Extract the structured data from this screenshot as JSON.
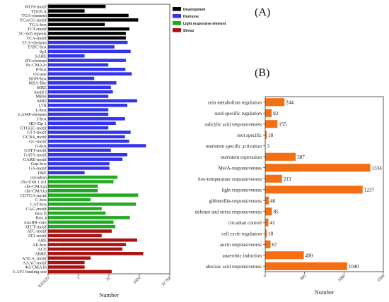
{
  "panels": {
    "a_label": "(A)",
    "b_label": "(B)"
  },
  "colors": {
    "development": "#000000",
    "hormone": "#3333ee",
    "light": "#22aa22",
    "stress": "#aa1111",
    "bars_b": "#f46e14"
  },
  "chart_data": [
    {
      "type": "bar",
      "orientation": "horizontal",
      "panel": "(A)",
      "xlabel": "Number",
      "xscale": "log2",
      "xlim": [
        0.03125,
        32768
      ],
      "xticks": [
        "0.03125",
        "1",
        "32",
        "1024",
        "32 768"
      ],
      "xtick_values": [
        0.03125,
        1,
        32,
        1024,
        32768
      ],
      "legend": {
        "placement": "top-right",
        "entries": [
          {
            "name": "Development",
            "color": "#000000"
          },
          {
            "name": "Hormone",
            "color": "#3333ee"
          },
          {
            "name": "Light responsive element",
            "color": "#22aa22"
          },
          {
            "name": "Stress",
            "color": "#aa1111"
          }
        ]
      },
      "bars": [
        {
          "label": "WUN-motif",
          "value": 22,
          "group": "development"
        },
        {
          "label": "TGGCA",
          "value": 2,
          "group": "development"
        },
        {
          "label": "TGA-element",
          "value": 300,
          "group": "development"
        },
        {
          "label": "TGACG-motif",
          "value": 900,
          "group": "development"
        },
        {
          "label": "TGA-box",
          "value": 20,
          "group": "development"
        },
        {
          "label": "TCT-motif",
          "value": 330,
          "group": "development"
        },
        {
          "label": "TC-rich repeats",
          "value": 220,
          "group": "development"
        },
        {
          "label": "TCA-motif",
          "value": 220,
          "group": "development"
        },
        {
          "label": "TCA-element",
          "value": 270,
          "group": "hormone"
        },
        {
          "label": "TATC-box",
          "value": 60,
          "group": "hormone"
        },
        {
          "label": "Sp1",
          "value": 380,
          "group": "hormone"
        },
        {
          "label": "SARE",
          "value": 2,
          "group": "hormone"
        },
        {
          "label": "RY-element",
          "value": 220,
          "group": "hormone"
        },
        {
          "label": "Pc-CMA2c",
          "value": 30,
          "group": "hormone"
        },
        {
          "label": "P-box",
          "value": 210,
          "group": "hormone"
        },
        {
          "label": "O2-site",
          "value": 430,
          "group": "hormone"
        },
        {
          "label": "NON-box",
          "value": 6,
          "group": "hormone"
        },
        {
          "label": "MSA-like",
          "value": 75,
          "group": "hormone"
        },
        {
          "label": "MRE",
          "value": 40,
          "group": "hormone"
        },
        {
          "label": "motif I",
          "value": 50,
          "group": "hormone"
        },
        {
          "label": "MBSI",
          "value": 30,
          "group": "hormone"
        },
        {
          "label": "MBS",
          "value": 800,
          "group": "hormone"
        },
        {
          "label": "LTR",
          "value": 260,
          "group": "hormone"
        },
        {
          "label": "L-box",
          "value": 30,
          "group": "hormone"
        },
        {
          "label": "LAMP-element",
          "value": 30,
          "group": "hormone"
        },
        {
          "label": "I-box",
          "value": 200,
          "group": "hormone"
        },
        {
          "label": "HD-Zip 1",
          "value": 70,
          "group": "hormone"
        },
        {
          "label": "GTGGC-motif",
          "value": 30,
          "group": "hormone"
        },
        {
          "label": "GT1-motif",
          "value": 380,
          "group": "hormone"
        },
        {
          "label": "GCN4_motif",
          "value": 200,
          "group": "hormone"
        },
        {
          "label": "GC-motif",
          "value": 320,
          "group": "hormone"
        },
        {
          "label": "G-box",
          "value": 2200,
          "group": "hormone"
        },
        {
          "label": "GATT-motif",
          "value": 40,
          "group": "hormone"
        },
        {
          "label": "GATA-motif",
          "value": 260,
          "group": "hormone"
        },
        {
          "label": "GARE-motif",
          "value": 150,
          "group": "hormone"
        },
        {
          "label": "Gap-box",
          "value": 34,
          "group": "hormone"
        },
        {
          "label": "GA-motif",
          "value": 34,
          "group": "hormone"
        },
        {
          "label": "DRE",
          "value": 2,
          "group": "hormone"
        },
        {
          "label": "circadian",
          "value": 85,
          "group": "light"
        },
        {
          "label": "chs-Unit 1 m1",
          "value": 54,
          "group": "light"
        },
        {
          "label": "chs-CMA2a",
          "value": 9,
          "group": "light"
        },
        {
          "label": "chs-CMA1a",
          "value": 9,
          "group": "light"
        },
        {
          "label": "CGTCA-motif",
          "value": 900,
          "group": "light"
        },
        {
          "label": "C-box",
          "value": 4,
          "group": "light"
        },
        {
          "label": "CAT-box",
          "value": 700,
          "group": "light"
        },
        {
          "label": "CAG-motif",
          "value": 14,
          "group": "light"
        },
        {
          "label": "Box II",
          "value": 22,
          "group": "light"
        },
        {
          "label": "Box 4",
          "value": 350,
          "group": "light"
        },
        {
          "label": "AuxRR-core",
          "value": 54,
          "group": "light"
        },
        {
          "label": "ATCT-motif",
          "value": 66,
          "group": "light"
        },
        {
          "label": "ATC-motif",
          "value": 44,
          "group": "stress"
        },
        {
          "label": "AT1-motif",
          "value": 14,
          "group": "stress"
        },
        {
          "label": "ARE",
          "value": 800,
          "group": "stress"
        },
        {
          "label": "AE-box",
          "value": 220,
          "group": "stress"
        },
        {
          "label": "ACE",
          "value": 150,
          "group": "stress"
        },
        {
          "label": "ABRE",
          "value": 1600,
          "group": "stress"
        },
        {
          "label": "AACA_motif",
          "value": 4,
          "group": "stress"
        },
        {
          "label": "AAAC-motif",
          "value": 2,
          "group": "stress"
        },
        {
          "label": "4cl-CMA1b",
          "value": 2,
          "group": "stress"
        },
        {
          "label": "3-AF1 binding site",
          "value": 44,
          "group": "stress"
        }
      ]
    },
    {
      "type": "bar",
      "orientation": "horizontal",
      "panel": "(B)",
      "xlabel": "Number",
      "xlim": [
        0,
        1500
      ],
      "xticks": [
        0,
        500,
        1000,
        1500
      ],
      "categories": [
        "zein metabolism regulation",
        "seed-specific regulation",
        "salicylic acid responsiveness",
        "root specific",
        "meristem specific activation",
        "meristem expression",
        "MeJA-responsiveness",
        "low-temperature responsiveness",
        "light responsiveness",
        "gibberellin-responsiveness",
        "defense and stress responsiveness",
        "circadian control",
        "cell cycle regulation",
        "auxin responsiveness",
        "anaerobic induction",
        "abscisic acid responsiveness"
      ],
      "values": [
        244,
        82,
        155,
        18,
        3,
        387,
        1334,
        213,
        1237,
        46,
        85,
        41,
        18,
        67,
        490,
        1040
      ]
    }
  ]
}
